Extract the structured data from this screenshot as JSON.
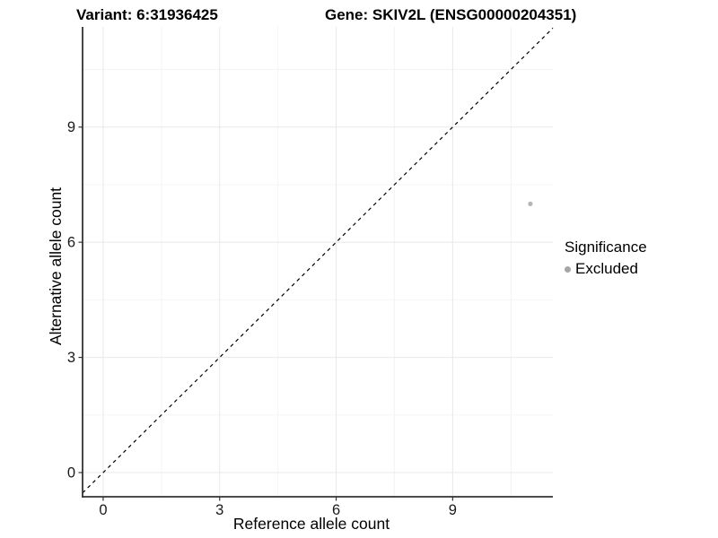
{
  "chart_data": {
    "type": "scatter",
    "titles": {
      "variant": "Variant: 6:31936425",
      "gene": "Gene: SKIV2L (ENSG00000204351)"
    },
    "xlabel": "Reference allele count",
    "ylabel": "Alternative allele count",
    "xlim": [
      -0.53,
      11.58
    ],
    "ylim": [
      -0.63,
      11.61
    ],
    "xticks": [
      0,
      3,
      6,
      9
    ],
    "yticks": [
      0,
      3,
      6,
      9
    ],
    "xticks_minor": [
      1.5,
      4.5,
      7.5,
      10.5
    ],
    "yticks_minor": [
      1.5,
      4.5,
      7.5,
      10.5
    ],
    "grid": true,
    "abline": {
      "slope": 1,
      "intercept": 0,
      "style": "dashed",
      "color": "#000000"
    },
    "series": [
      {
        "name": "Excluded",
        "color": "#b5b5b5",
        "point_radius": 2.6,
        "points": [
          [
            11,
            7
          ]
        ]
      }
    ],
    "legend": {
      "position": "right",
      "title": "Significance",
      "items": [
        {
          "label": "Excluded",
          "color": "#a6a6a6"
        }
      ]
    },
    "colors": {
      "grid_major": "#e8e8e8",
      "grid_minor": "#f4f4f4",
      "axis": "#333333",
      "tick_text": "#1a1a1a",
      "title_text": "#000000"
    }
  }
}
